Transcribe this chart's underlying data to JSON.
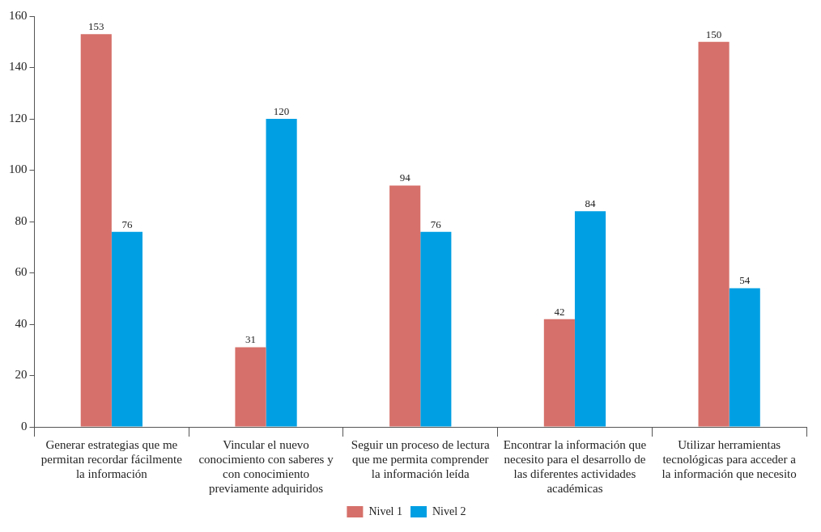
{
  "chart_data": {
    "type": "bar",
    "categories": [
      "Generar estrategias que me permitan recordar fácilmente la información",
      "Vincular el nuevo conocimiento con saberes y con conocimiento previamente adquiridos",
      "Seguir un proceso de lectura que me permita comprender la información leída",
      "Encontrar la información que necesito para el desarrollo de las diferentes actividades académicas",
      "Utilizar herramientas tecnológicas para acceder a la información que necesito"
    ],
    "series": [
      {
        "name": "Nivel 1",
        "color": "#d6706a",
        "values": [
          153,
          31,
          94,
          42,
          150
        ]
      },
      {
        "name": "Nivel 2",
        "color": "#009fe3",
        "values": [
          76,
          120,
          76,
          84,
          54
        ]
      }
    ],
    "ylim": [
      0,
      160
    ],
    "yticks": [
      0,
      20,
      40,
      60,
      80,
      100,
      120,
      140,
      160
    ],
    "data_labels": true,
    "legend": "bottom"
  }
}
